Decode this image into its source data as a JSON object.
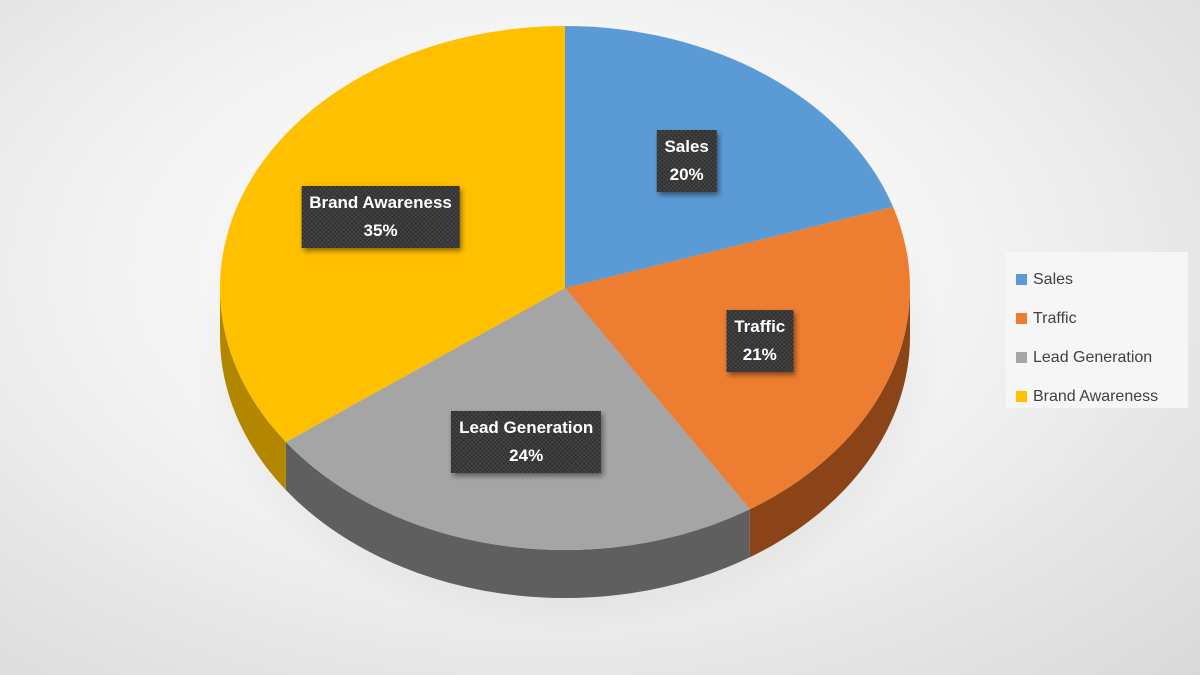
{
  "chart_data": {
    "type": "pie",
    "title": "",
    "slices": [
      {
        "label": "Sales",
        "value": 20,
        "display": "20%",
        "color": "#5b9bd5",
        "side_color": "#3a6e9c"
      },
      {
        "label": "Traffic",
        "value": 21,
        "display": "21%",
        "color": "#ed7d31",
        "side_color": "#8a4418"
      },
      {
        "label": "Lead Generation",
        "value": 24,
        "display": "24%",
        "color": "#a5a5a5",
        "side_color": "#5f5f5f"
      },
      {
        "label": "Brand Awareness",
        "value": 35,
        "display": "35%",
        "color": "#ffc000",
        "side_color": "#b38600"
      }
    ],
    "legend": {
      "position": "right",
      "entries": [
        "Sales",
        "Traffic",
        "Lead Generation",
        "Brand Awareness"
      ]
    },
    "style": "3d-pie",
    "data_labels": "category-and-percent"
  }
}
